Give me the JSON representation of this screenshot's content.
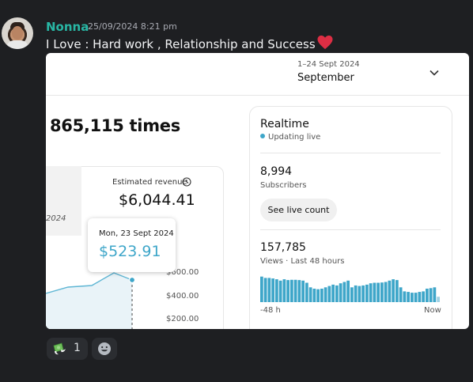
{
  "message": {
    "username": "Nonna",
    "timestamp": "25/09/2024 8:21 pm",
    "text": "I Love : Hard work , Relationship and Success",
    "text_emoji": "heart-icon",
    "colors": {
      "username": "#28b6a4",
      "background": "#1e1f22",
      "text": "#f2f3f5"
    }
  },
  "screenshot": {
    "header": {
      "date_range": "1–24 Sept 2024",
      "month": "September"
    },
    "headline": "865,115 times",
    "revenue_card": {
      "year_fragment": "2024",
      "label": "Estimated revenue",
      "value": "$6,044.41",
      "y_ticks": [
        "$600.00",
        "$400.00",
        "$200.00"
      ]
    },
    "tooltip": {
      "date": "Mon, 23 Sept 2024",
      "value": "$523.91"
    },
    "realtime": {
      "title": "Realtime",
      "status": "Updating live",
      "subscribers": "8,994",
      "subscribers_label": "Subscribers",
      "live_button": "See live count",
      "views": "157,785",
      "views_label": "Views · Last 48 hours",
      "axis_left": "-48 h",
      "axis_right": "Now",
      "bar_heights": [
        0.95,
        0.9,
        0.9,
        0.88,
        0.85,
        0.8,
        0.85,
        0.82,
        0.83,
        0.83,
        0.82,
        0.8,
        0.72,
        0.55,
        0.5,
        0.48,
        0.5,
        0.55,
        0.6,
        0.65,
        0.62,
        0.7,
        0.75,
        0.8,
        0.55,
        0.62,
        0.6,
        0.62,
        0.65,
        0.7,
        0.72,
        0.72,
        0.73,
        0.75,
        0.8,
        0.85,
        0.82,
        0.55,
        0.4,
        0.38,
        0.35,
        0.35,
        0.38,
        0.4,
        0.5,
        0.52,
        0.55,
        0.2
      ],
      "accent": "#3ea6c9"
    }
  },
  "reactions": [
    {
      "icon": "money-with-wings-icon",
      "count": "1"
    }
  ],
  "add_reaction_icon": "smiley-add-icon"
}
